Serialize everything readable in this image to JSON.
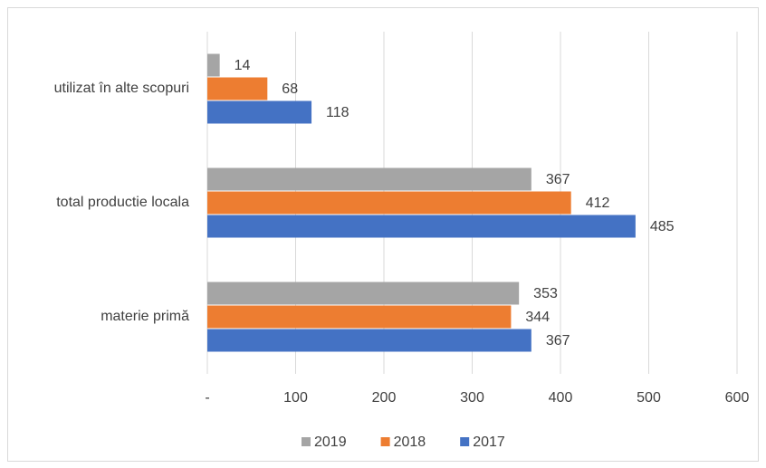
{
  "chart_data": {
    "type": "barh",
    "categories": [
      "utilizat în alte scopuri",
      "total productie locala",
      "materie primă"
    ],
    "series": [
      {
        "name": "2019",
        "color": "#a5a5a5",
        "values": [
          14,
          367,
          353
        ]
      },
      {
        "name": "2018",
        "color": "#ed7d31",
        "values": [
          68,
          412,
          344
        ]
      },
      {
        "name": "2017",
        "color": "#4472c4",
        "values": [
          118,
          485,
          367
        ]
      }
    ],
    "xlim": [
      0,
      600
    ],
    "xticks": [
      {
        "value": 0,
        "label": "-"
      },
      100,
      200,
      300,
      400,
      500,
      600
    ],
    "grid": true,
    "legend": "bottom"
  }
}
